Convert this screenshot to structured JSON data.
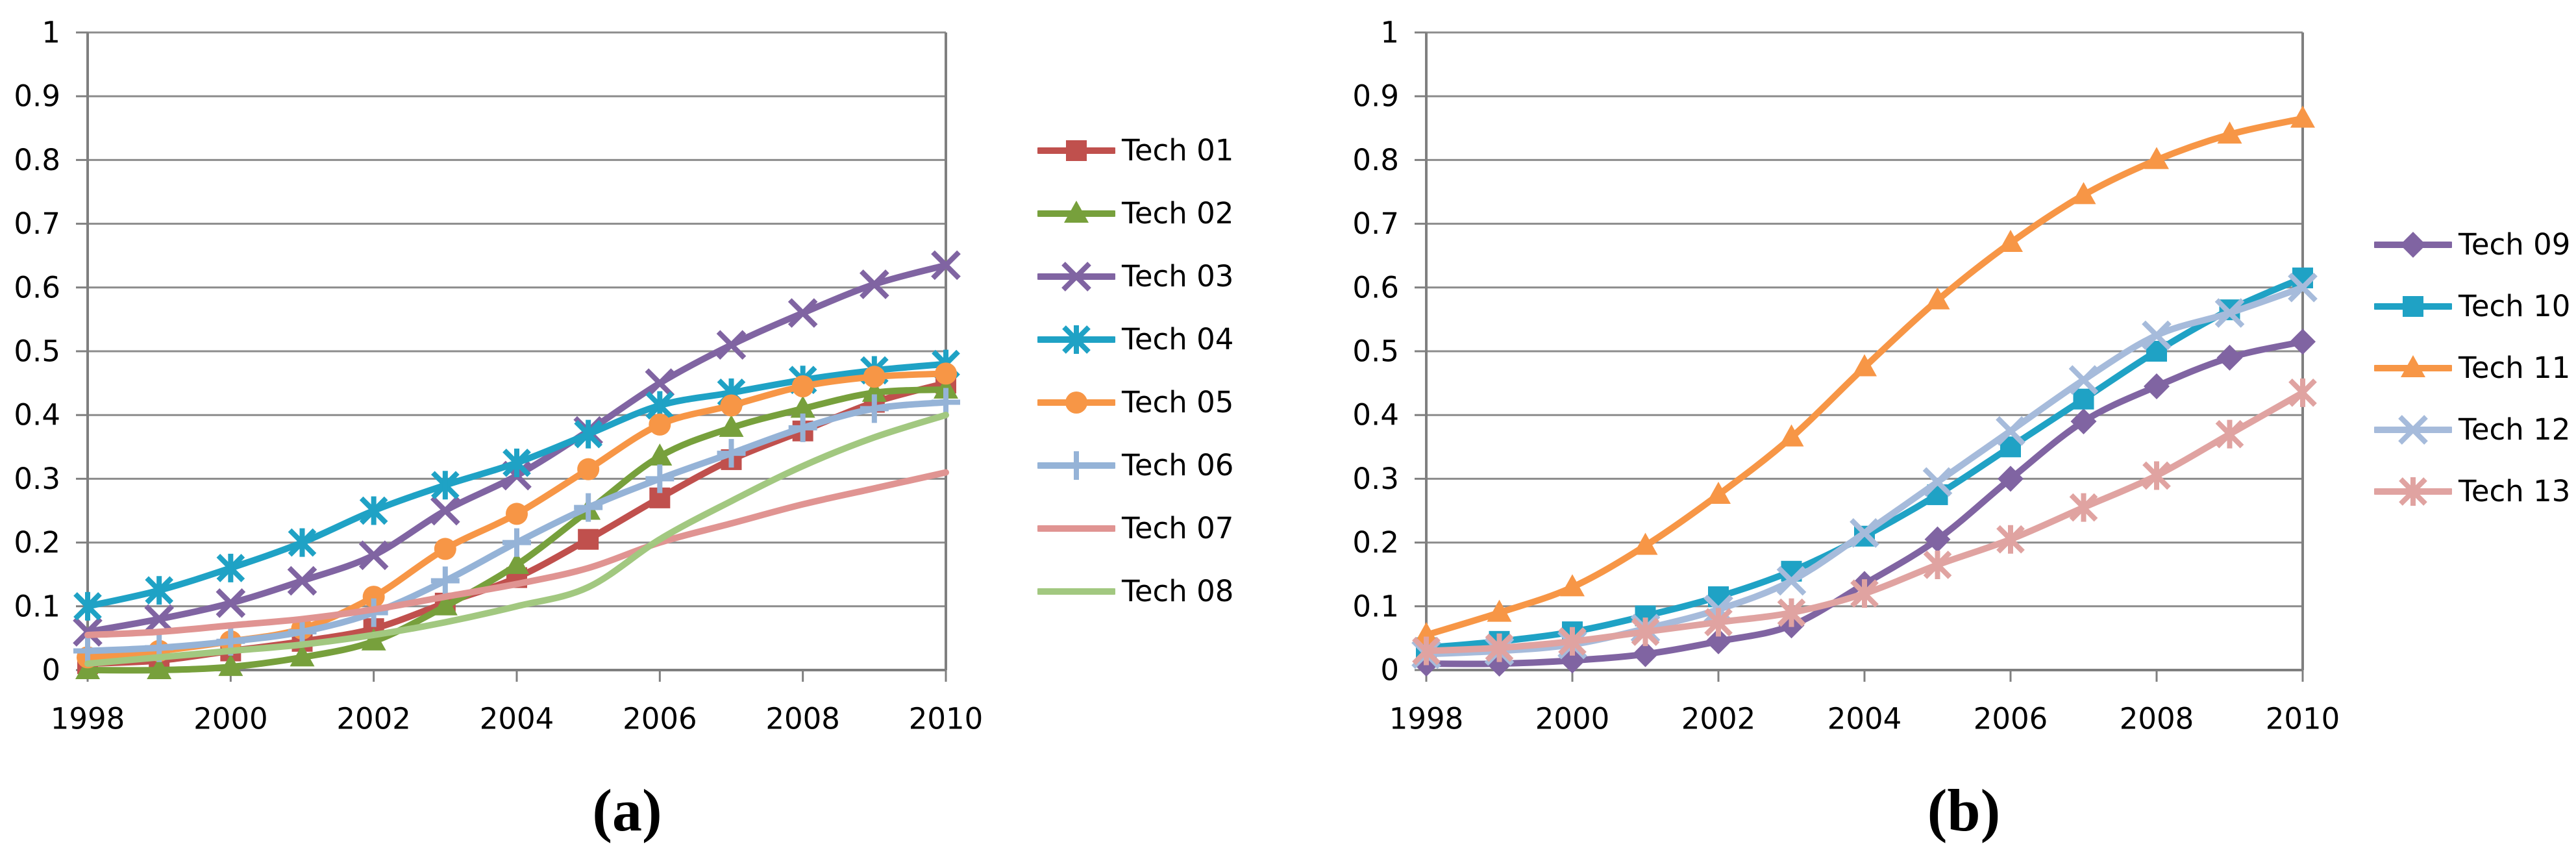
{
  "figure": {
    "background": "#FFFFFF",
    "grid_color": "#8C8C8C",
    "axis_color": "#7F7F7F",
    "text_color": "#000000"
  },
  "chart_data": [
    {
      "id": "a",
      "type": "line",
      "sublabel": "(a)",
      "title": "",
      "xlabel": "",
      "ylabel": "",
      "x": [
        1998,
        1999,
        2000,
        2001,
        2002,
        2003,
        2004,
        2005,
        2006,
        2007,
        2008,
        2009,
        2010
      ],
      "x_labeled_ticks": [
        1998,
        2000,
        2002,
        2004,
        2006,
        2008,
        2010
      ],
      "x_tick_labels": [
        "1998",
        "2000",
        "2002",
        "2004",
        "2006",
        "2008",
        "2010"
      ],
      "ylim": [
        0,
        1
      ],
      "y_ticks": [
        0,
        0.1,
        0.2,
        0.3,
        0.4,
        0.5,
        0.6,
        0.7,
        0.8,
        0.9,
        1
      ],
      "y_tick_labels": [
        "0",
        "0.1",
        "0.2",
        "0.3",
        "0.4",
        "0.5",
        "0.6",
        "0.7",
        "0.8",
        "0.9",
        "1"
      ],
      "grid": true,
      "smooth_lines": true,
      "legend_position": "right",
      "series": [
        {
          "name": "Tech 01",
          "color": "#C0504D",
          "marker": "square-icon",
          "values": [
            0.01,
            0.015,
            0.03,
            0.045,
            0.065,
            0.105,
            0.145,
            0.205,
            0.27,
            0.33,
            0.375,
            0.42,
            0.45
          ]
        },
        {
          "name": "Tech 02",
          "color": "#77A03C",
          "marker": "triangle-icon",
          "values": [
            0.0,
            0.0,
            0.005,
            0.02,
            0.045,
            0.1,
            0.165,
            0.25,
            0.335,
            0.38,
            0.41,
            0.435,
            0.44
          ]
        },
        {
          "name": "Tech 03",
          "color": "#8064A2",
          "marker": "x-icon",
          "values": [
            0.06,
            0.08,
            0.105,
            0.14,
            0.18,
            0.25,
            0.305,
            0.375,
            0.45,
            0.51,
            0.56,
            0.605,
            0.635
          ]
        },
        {
          "name": "Tech 04",
          "color": "#1FA2C5",
          "marker": "asterisk-icon",
          "values": [
            0.1,
            0.125,
            0.16,
            0.2,
            0.25,
            0.29,
            0.325,
            0.37,
            0.415,
            0.435,
            0.455,
            0.47,
            0.48
          ]
        },
        {
          "name": "Tech 05",
          "color": "#F79646",
          "marker": "circle-icon",
          "values": [
            0.02,
            0.03,
            0.045,
            0.065,
            0.115,
            0.19,
            0.245,
            0.315,
            0.385,
            0.415,
            0.445,
            0.46,
            0.465
          ]
        },
        {
          "name": "Tech 06",
          "color": "#95B3D7",
          "marker": "plus-icon",
          "values": [
            0.03,
            0.035,
            0.045,
            0.06,
            0.09,
            0.14,
            0.2,
            0.255,
            0.3,
            0.34,
            0.38,
            0.41,
            0.42
          ]
        },
        {
          "name": "Tech 07",
          "color": "#E09492",
          "marker": "none",
          "values": [
            0.055,
            0.06,
            0.07,
            0.08,
            0.095,
            0.115,
            0.135,
            0.16,
            0.2,
            0.23,
            0.26,
            0.285,
            0.31
          ]
        },
        {
          "name": "Tech 08",
          "color": "#A2C880",
          "marker": "none",
          "values": [
            0.01,
            0.02,
            0.03,
            0.04,
            0.055,
            0.075,
            0.1,
            0.13,
            0.205,
            0.265,
            0.32,
            0.365,
            0.4
          ]
        }
      ]
    },
    {
      "id": "b",
      "type": "line",
      "sublabel": "(b)",
      "title": "",
      "xlabel": "",
      "ylabel": "",
      "x": [
        1998,
        1999,
        2000,
        2001,
        2002,
        2003,
        2004,
        2005,
        2006,
        2007,
        2008,
        2009,
        2010
      ],
      "x_labeled_ticks": [
        1998,
        2000,
        2002,
        2004,
        2006,
        2008,
        2010
      ],
      "x_tick_labels": [
        "1998",
        "2000",
        "2002",
        "2004",
        "2006",
        "2008",
        "2010"
      ],
      "ylim": [
        0,
        1
      ],
      "y_ticks": [
        0,
        0.1,
        0.2,
        0.3,
        0.4,
        0.5,
        0.6,
        0.7,
        0.8,
        0.9,
        1
      ],
      "y_tick_labels": [
        "0",
        "0.1",
        "0.2",
        "0.3",
        "0.4",
        "0.5",
        "0.6",
        "0.7",
        "0.8",
        "0.9",
        "1"
      ],
      "grid": true,
      "smooth_lines": true,
      "legend_position": "right",
      "series": [
        {
          "name": "Tech 09",
          "color": "#8064A2",
          "marker": "diamond-icon",
          "values": [
            0.01,
            0.01,
            0.015,
            0.025,
            0.045,
            0.07,
            0.135,
            0.205,
            0.3,
            0.39,
            0.445,
            0.49,
            0.515
          ]
        },
        {
          "name": "Tech 10",
          "color": "#1FA2C5",
          "marker": "square-icon",
          "values": [
            0.035,
            0.045,
            0.06,
            0.085,
            0.115,
            0.155,
            0.21,
            0.275,
            0.35,
            0.425,
            0.5,
            0.565,
            0.615
          ]
        },
        {
          "name": "Tech 11",
          "color": "#F79646",
          "marker": "triangle-icon",
          "values": [
            0.055,
            0.09,
            0.13,
            0.195,
            0.275,
            0.365,
            0.475,
            0.58,
            0.67,
            0.745,
            0.8,
            0.84,
            0.865
          ]
        },
        {
          "name": "Tech 12",
          "color": "#A6BBDB",
          "marker": "x-icon",
          "values": [
            0.025,
            0.03,
            0.04,
            0.065,
            0.095,
            0.14,
            0.215,
            0.295,
            0.375,
            0.455,
            0.525,
            0.56,
            0.6
          ]
        },
        {
          "name": "Tech 13",
          "color": "#E0A3A1",
          "marker": "asterisk-icon",
          "values": [
            0.03,
            0.035,
            0.045,
            0.06,
            0.075,
            0.09,
            0.12,
            0.165,
            0.205,
            0.255,
            0.305,
            0.37,
            0.435
          ]
        }
      ]
    }
  ]
}
